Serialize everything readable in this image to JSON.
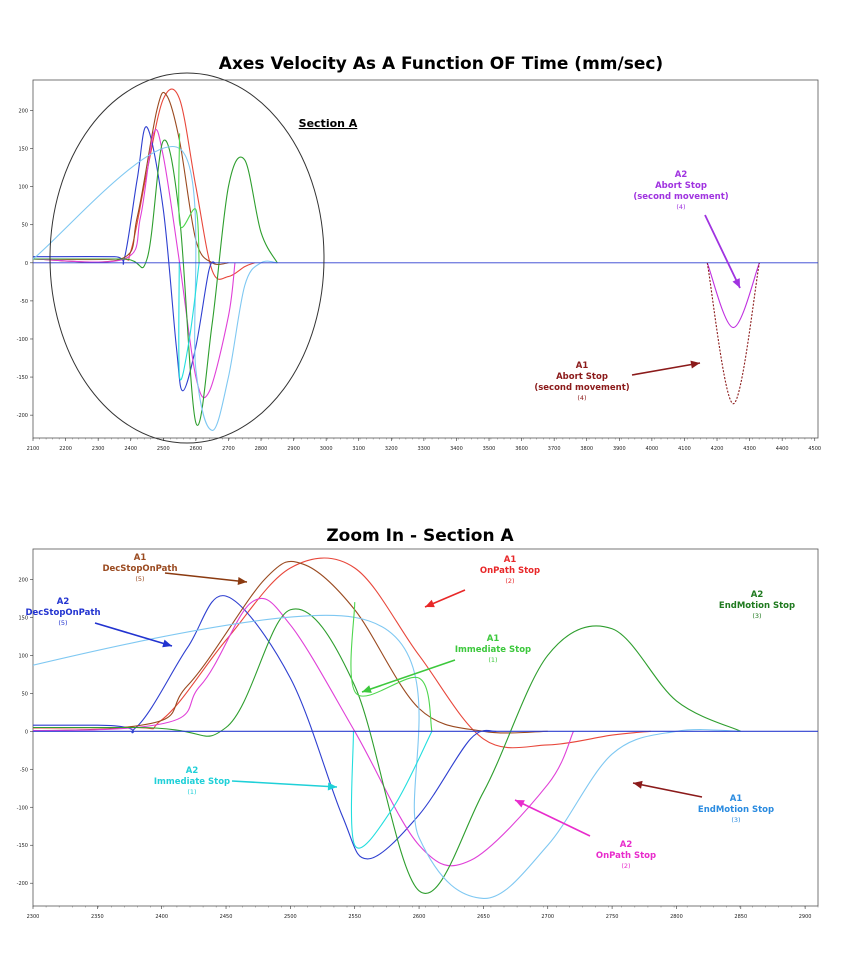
{
  "chart_data": [
    {
      "type": "line",
      "title": "Axes Velocity As A Function OF Time (mm/sec)",
      "xlabel": "",
      "ylabel": "",
      "xlim": [
        2100,
        4510
      ],
      "ylim": [
        -230,
        240
      ],
      "x_ticks": [
        "2100",
        "2200",
        "2300",
        "2400",
        "2500",
        "2600",
        "2700",
        "2800",
        "2900",
        "3000",
        "3100",
        "3200",
        "3300",
        "3400",
        "3500",
        "3600",
        "3700",
        "3800",
        "3900",
        "4000",
        "4100",
        "4200",
        "4300",
        "4400",
        "4500"
      ],
      "y_ticks": [
        "200",
        "150",
        "100",
        "50",
        "0",
        "-50",
        "-100",
        "-150",
        "-200"
      ],
      "series": [
        {
          "name": "A1 OnPath Stop",
          "color": "#e8473b",
          "x": [
            2100,
            2360,
            2400,
            2450,
            2500,
            2550,
            2600,
            2650,
            2700,
            2750,
            2780
          ],
          "y": [
            5,
            5,
            15,
            120,
            215,
            215,
            100,
            -10,
            -18,
            -5,
            0
          ]
        },
        {
          "name": "A2 DecStopOnPath",
          "color": "#2e3fd0",
          "x": [
            2100,
            2350,
            2380,
            2420,
            2450,
            2500,
            2540,
            2560,
            2600,
            2640,
            2660
          ],
          "y": [
            8,
            8,
            5,
            110,
            178,
            70,
            -110,
            -168,
            -110,
            -10,
            0
          ]
        },
        {
          "name": "A1 DecStopOnPath",
          "color": "#9a4a20",
          "x": [
            2100,
            2370,
            2420,
            2480,
            2510,
            2550,
            2600,
            2650,
            2700
          ],
          "y": [
            5,
            5,
            60,
            200,
            220,
            160,
            30,
            0,
            0
          ]
        },
        {
          "name": "A2 OnPath Stop",
          "color": "#e040d8",
          "x": [
            2100,
            2380,
            2430,
            2470,
            2500,
            2550,
            2600,
            2640,
            2700,
            2720
          ],
          "y": [
            5,
            5,
            60,
            170,
            140,
            0,
            -150,
            -170,
            -70,
            0
          ]
        },
        {
          "name": "A2 EndMotion Stop",
          "color": "#2e9e2e",
          "x": [
            2100,
            2380,
            2450,
            2500,
            2550,
            2600,
            2650,
            2700,
            2750,
            2800,
            2850
          ],
          "y": [
            5,
            5,
            5,
            160,
            60,
            -210,
            -80,
            100,
            135,
            40,
            0
          ]
        },
        {
          "name": "A1 EndMotion Stop",
          "color": "#7fc8f2",
          "x": [
            2100,
            2550,
            2600,
            2650,
            2700,
            2750,
            2800,
            2850
          ],
          "y": [
            5,
            150,
            -140,
            -220,
            -150,
            -30,
            0,
            0
          ]
        },
        {
          "name": "A1 Immediate Stop",
          "color": "#4fd64f",
          "x": [
            2550,
            2551,
            2600,
            2610
          ],
          "y": [
            170,
            50,
            70,
            0
          ]
        },
        {
          "name": "A2 Immediate Stop",
          "color": "#22dede",
          "x": [
            2549,
            2550,
            2580,
            2610
          ],
          "y": [
            0,
            -150,
            -100,
            0
          ]
        },
        {
          "name": "A2 Abort Stop (second movement)",
          "color": "#c030e0",
          "x": [
            4170,
            4250,
            4330
          ],
          "y": [
            0,
            -85,
            0
          ]
        },
        {
          "name": "A1 Abort Stop (second movement)",
          "color": "#8b1a1a",
          "x": [
            4170,
            4250,
            4330
          ],
          "y": [
            0,
            -185,
            0
          ]
        },
        {
          "name": "Baseline",
          "color": "#2e3fd0",
          "x": [
            2100,
            4510
          ],
          "y": [
            0,
            0
          ]
        }
      ],
      "annotations": [
        {
          "id": "section_a",
          "lines": [
            "Section A"
          ],
          "color": "#000000"
        },
        {
          "id": "a2_abort",
          "lines": [
            "A2",
            "Abort Stop",
            "(second movement)",
            "(4)"
          ],
          "color": "#a033e0"
        },
        {
          "id": "a1_abort",
          "lines": [
            "A1",
            "Abort Stop",
            "(second movement)",
            "(4)"
          ],
          "color": "#8b1a1a"
        }
      ]
    },
    {
      "type": "line",
      "title": "Zoom In - Section A",
      "xlabel": "",
      "ylabel": "",
      "xlim": [
        2300,
        2910
      ],
      "ylim": [
        -230,
        240
      ],
      "x_ticks": [
        "2300",
        "2350",
        "2400",
        "2450",
        "2500",
        "2550",
        "2600",
        "2650",
        "2700",
        "2750",
        "2800",
        "2850",
        "2900"
      ],
      "y_ticks": [
        "200",
        "150",
        "100",
        "50",
        "0",
        "-50",
        "-100",
        "-150",
        "-200"
      ],
      "annotations": [
        {
          "id": "a1_decstop",
          "lines": [
            "A1",
            "DecStopOnPath",
            "(5)"
          ],
          "color": "#9a4a20"
        },
        {
          "id": "a1_onpath",
          "lines": [
            "A1",
            "OnPath Stop",
            "(2)"
          ],
          "color": "#e8282a"
        },
        {
          "id": "a2_endmotion",
          "lines": [
            "A2",
            "EndMotion Stop",
            "(3)"
          ],
          "color": "#1f7a1f"
        },
        {
          "id": "a2_decstop",
          "lines": [
            "A2",
            "DecStopOnPath",
            "(5)"
          ],
          "color": "#2233d0"
        },
        {
          "id": "a1_immediate",
          "lines": [
            "A1",
            "Immediate Stop",
            "(1)"
          ],
          "color": "#3cc83c"
        },
        {
          "id": "a2_immediate",
          "lines": [
            "A2",
            "Immediate Stop",
            "(1)"
          ],
          "color": "#1fd0d8"
        },
        {
          "id": "a1_endmotion",
          "lines": [
            "A1",
            "EndMotion Stop",
            "(3)"
          ],
          "color": "#2a8be0"
        },
        {
          "id": "a2_onpath",
          "lines": [
            "A2",
            "OnPath Stop",
            "(2)"
          ],
          "color": "#e82ccc"
        }
      ]
    }
  ]
}
